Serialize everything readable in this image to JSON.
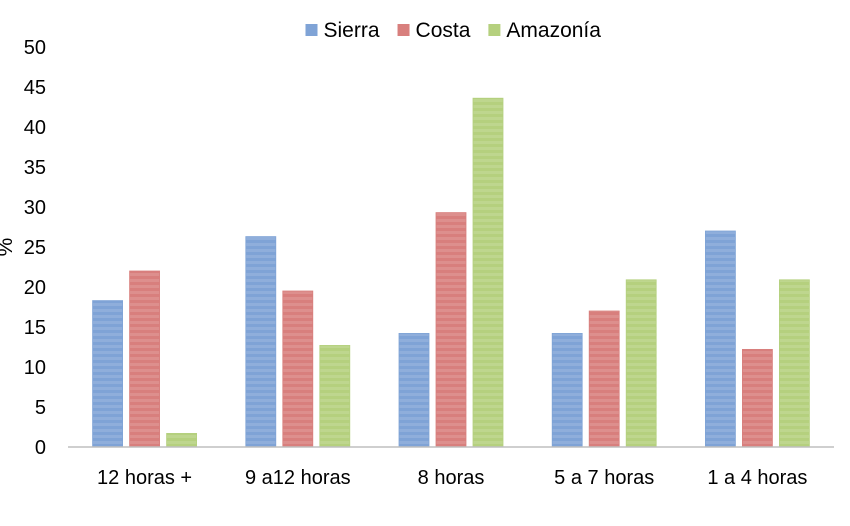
{
  "chart_data": {
    "type": "bar",
    "categories": [
      "12 horas +",
      "9 a12 horas",
      "8 horas",
      "5 a 7 horas",
      "1 a 4 horas"
    ],
    "series": [
      {
        "name": "Sierra",
        "color": "#7fa3d6",
        "values": [
          18.3,
          26.3,
          14.2,
          14.2,
          27.0
        ]
      },
      {
        "name": "Costa",
        "color": "#d87f7d",
        "values": [
          22.0,
          19.5,
          29.3,
          17.0,
          12.2
        ]
      },
      {
        "name": "Amazonía",
        "color": "#b5d07e",
        "values": [
          1.7,
          12.7,
          43.6,
          20.9,
          20.9
        ]
      }
    ],
    "ylabel": "%",
    "ylim": [
      0,
      50
    ],
    "yticks": [
      0,
      5,
      10,
      15,
      20,
      25,
      30,
      35,
      40,
      45,
      50
    ],
    "grid": false,
    "legend": "top-center"
  }
}
